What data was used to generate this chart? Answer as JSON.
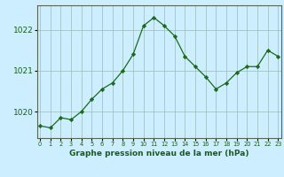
{
  "hours": [
    0,
    1,
    2,
    3,
    4,
    5,
    6,
    7,
    8,
    9,
    10,
    11,
    12,
    13,
    14,
    15,
    16,
    17,
    18,
    19,
    20,
    21,
    22,
    23
  ],
  "pressure": [
    1019.65,
    1019.6,
    1019.85,
    1019.8,
    1020.0,
    1020.3,
    1020.55,
    1020.7,
    1021.0,
    1021.4,
    1022.1,
    1022.3,
    1022.1,
    1021.85,
    1021.35,
    1021.1,
    1020.85,
    1020.55,
    1020.7,
    1020.95,
    1021.1,
    1021.1,
    1021.5,
    1021.35
  ],
  "line_color": "#1a6b1a",
  "marker": "D",
  "marker_size": 2.2,
  "bg_color": "#cceeff",
  "grid_color": "#99bbbb",
  "border_color": "#556655",
  "xlabel": "Graphe pression niveau de la mer (hPa)",
  "xlabel_color": "#1a5c1a",
  "tick_label_color": "#1a5c1a",
  "ylim": [
    1019.35,
    1022.6
  ],
  "yticks": [
    1020,
    1021,
    1022
  ],
  "xticks": [
    0,
    1,
    2,
    3,
    4,
    5,
    6,
    7,
    8,
    9,
    10,
    11,
    12,
    13,
    14,
    15,
    16,
    17,
    18,
    19,
    20,
    21,
    22,
    23
  ],
  "xtick_labels": [
    "0",
    "1",
    "2",
    "3",
    "4",
    "5",
    "6",
    "7",
    "8",
    "9",
    "10",
    "11",
    "12",
    "13",
    "14",
    "15",
    "16",
    "17",
    "18",
    "19",
    "20",
    "21",
    "22",
    "23"
  ]
}
